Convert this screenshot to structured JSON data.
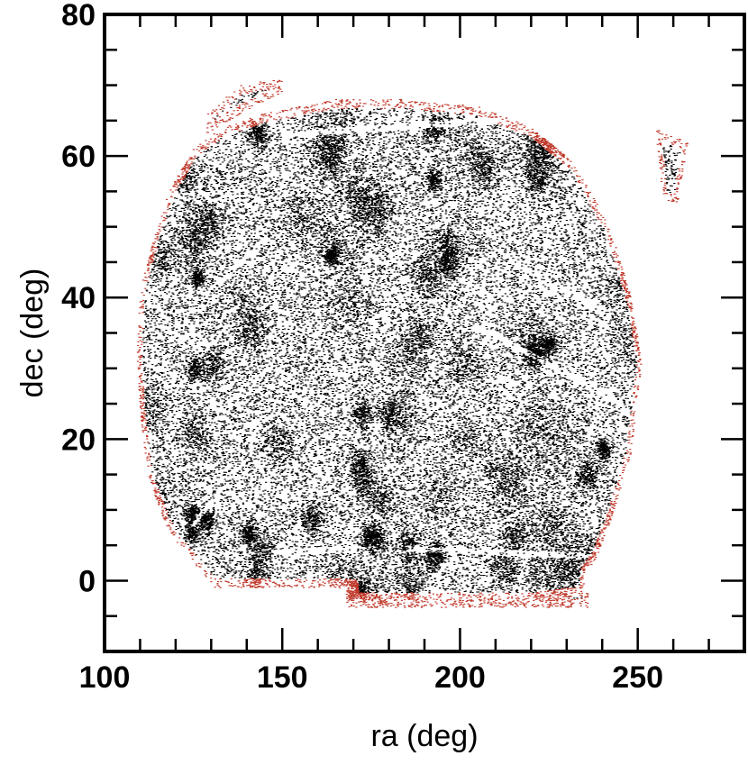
{
  "chart_data": {
    "type": "scatter",
    "xlabel": "ra (deg)",
    "ylabel": "dec (deg)",
    "xlim": [
      100,
      280
    ],
    "ylim": [
      -10,
      80
    ],
    "xticks": [
      100,
      150,
      200,
      250
    ],
    "yticks": [
      0,
      20,
      40,
      60,
      80
    ],
    "x_minor_step": 10,
    "y_minor_step": 5,
    "grid": false,
    "legend": "none",
    "series": [
      {
        "role": "interior",
        "color": "#000000"
      },
      {
        "role": "boundary",
        "color": "#c0392b"
      }
    ],
    "survey_region": {
      "footprint_polygon": [
        [
          110,
          41
        ],
        [
          113,
          47
        ],
        [
          118,
          55
        ],
        [
          125,
          61
        ],
        [
          133,
          64
        ],
        [
          145,
          66
        ],
        [
          165,
          68
        ],
        [
          185,
          68
        ],
        [
          205,
          67
        ],
        [
          220,
          64
        ],
        [
          232,
          59
        ],
        [
          242,
          50
        ],
        [
          248,
          40
        ],
        [
          251,
          31
        ],
        [
          248,
          18
        ],
        [
          242,
          8
        ],
        [
          238,
          3
        ],
        [
          235,
          1
        ],
        [
          235,
          -2
        ],
        [
          220,
          -3
        ],
        [
          200,
          -3
        ],
        [
          182,
          -3
        ],
        [
          170,
          -3
        ],
        [
          170,
          -1
        ],
        [
          150,
          -1
        ],
        [
          130,
          -1
        ],
        [
          128,
          1
        ],
        [
          122,
          4
        ],
        [
          117,
          8
        ],
        [
          112,
          15
        ],
        [
          110,
          24
        ],
        [
          109,
          32
        ]
      ],
      "lower_lobe": [
        [
          168,
          -1
        ],
        [
          236,
          -1
        ],
        [
          236,
          -3.8
        ],
        [
          168,
          -3.8
        ]
      ],
      "cap_patch": [
        [
          128,
          63
        ],
        [
          142,
          67
        ],
        [
          150,
          69
        ],
        [
          150,
          71
        ],
        [
          138,
          70
        ],
        [
          129,
          66
        ]
      ],
      "outlier_patch": [
        [
          255,
          64
        ],
        [
          264,
          62
        ],
        [
          261,
          53
        ],
        [
          257,
          54
        ]
      ],
      "empty_stripes": [
        {
          "from": [
            148,
            4
          ],
          "to": [
            172,
            4.5
          ]
        },
        {
          "from": [
            185,
            4.5
          ],
          "to": [
            235,
            3.5
          ]
        },
        {
          "from": [
            205,
            36
          ],
          "to": [
            245,
            25
          ]
        },
        {
          "from": [
            125,
            8
          ],
          "to": [
            133,
            13
          ]
        },
        {
          "from": [
            132,
            42
          ],
          "to": [
            145,
            48
          ]
        },
        {
          "from": [
            215,
            45
          ],
          "to": [
            240,
            38
          ]
        },
        {
          "from": [
            150,
            63
          ],
          "to": [
            210,
            65
          ]
        }
      ],
      "approx_point_count": 42000
    }
  }
}
